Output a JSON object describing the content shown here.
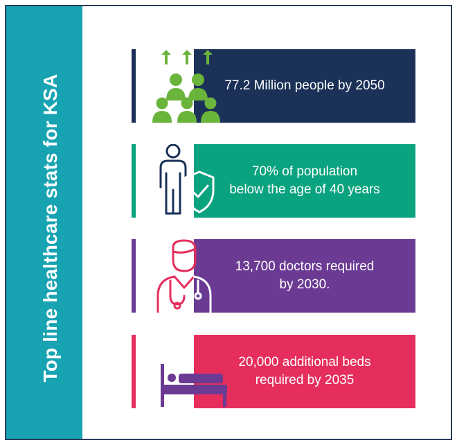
{
  "title": "Top line healthcare stats for KSA",
  "colors": {
    "teal": "#17a3b1",
    "navy": "#1b3158",
    "green": "#0aa37f",
    "purple": "#6b3a93",
    "pink": "#e52e5c",
    "icon_green": "#6bb43c",
    "icon_navy": "#1b3158",
    "icon_pink": "#e52e5c",
    "icon_purple": "#6b3a93"
  },
  "stats": [
    {
      "text": "77.2 Million people by 2050",
      "icon": "population-growth-icon"
    },
    {
      "text": "70% of population\nbelow the age of 40 years",
      "icon": "young-person-shield-icon"
    },
    {
      "text": "13,700 doctors required\nby 2030.",
      "icon": "doctor-icon"
    },
    {
      "text": "20,000 additional beds\nrequired by 2035",
      "icon": "hospital-bed-icon"
    }
  ]
}
